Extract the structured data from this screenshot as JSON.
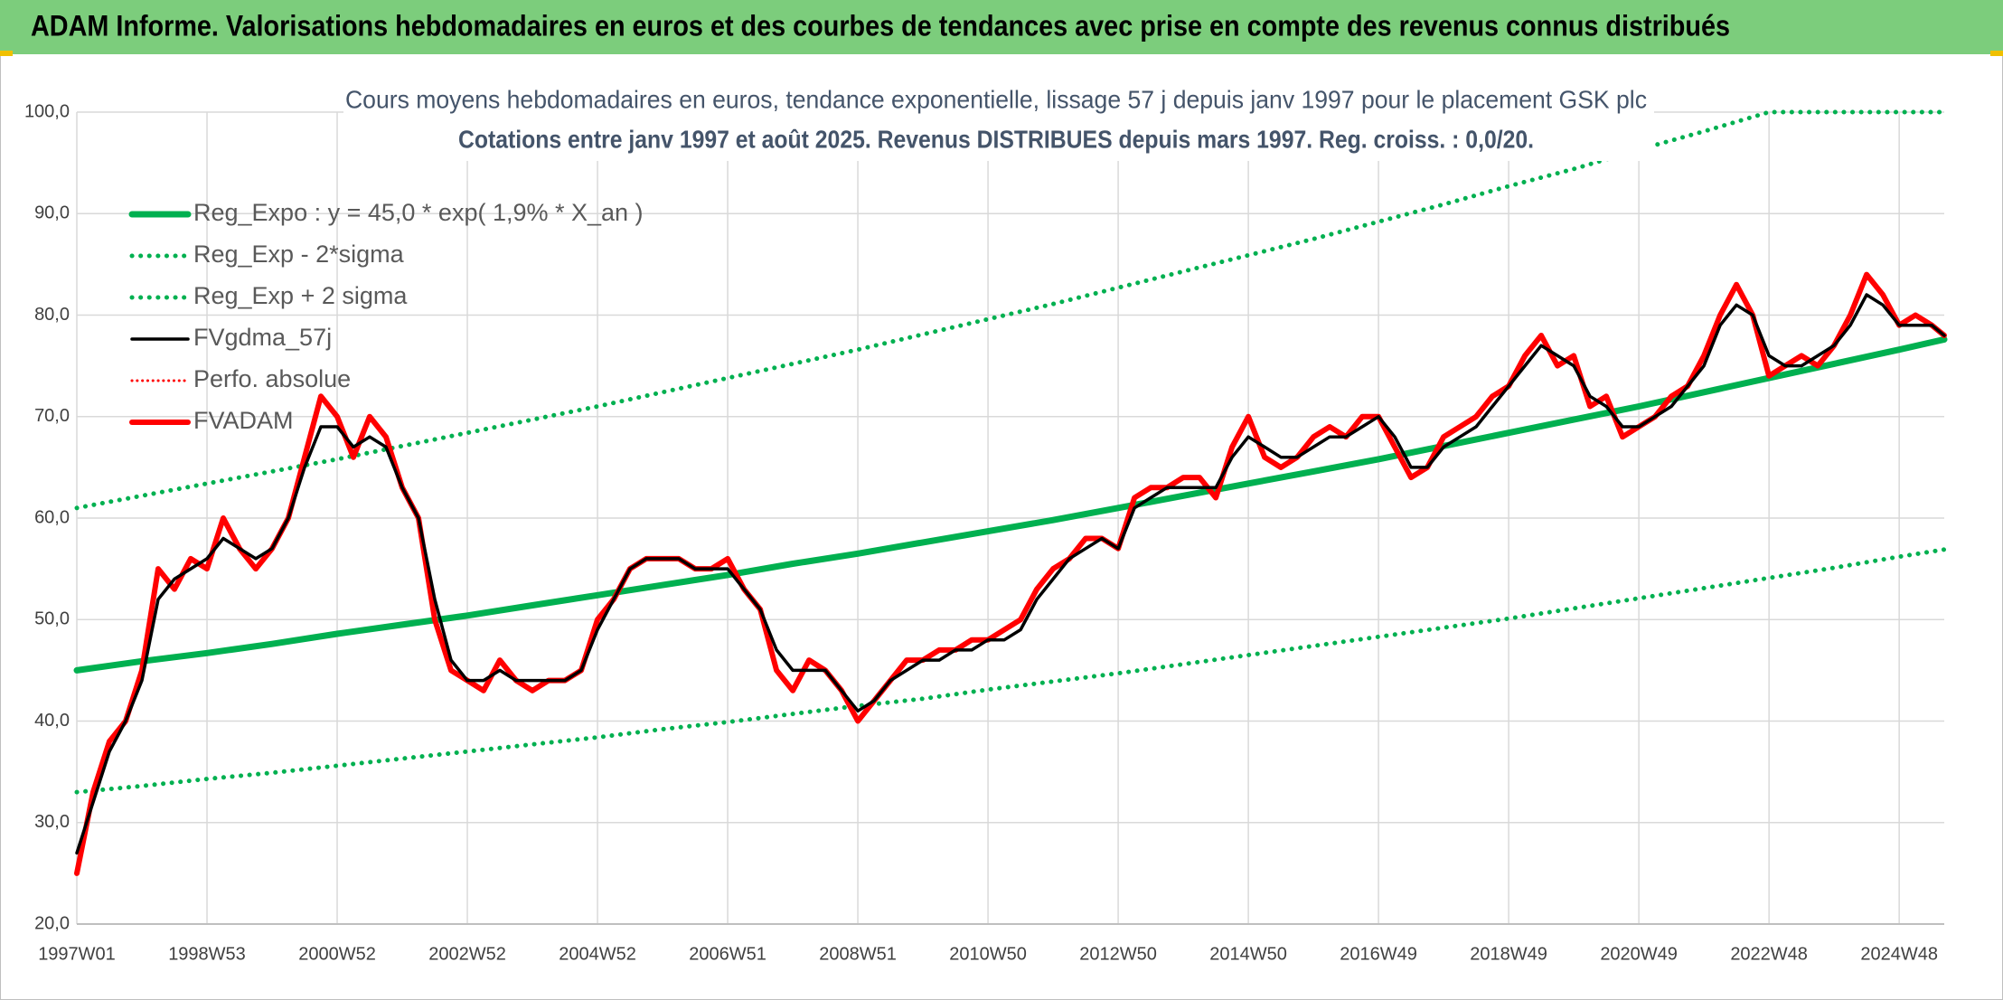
{
  "header": {
    "title": "ADAM Informe. Valorisations hebdomadaires en euros et des courbes de tendances avec prise en compte des revenus connus distribués"
  },
  "chart_data": {
    "type": "line",
    "title": "Cours moyens hebdomadaires en euros, tendance exponentielle, lissage 57 j depuis janv 1997 pour le placement GSK plc",
    "subtitle": "Cotations entre janv 1997 et août 2025. Revenus DISTRIBUES depuis mars 1997. Reg. croiss. : 0,0/20.",
    "xlim": [
      0,
      1492
    ],
    "xticks": [
      {
        "value": 0,
        "label": "1997W01"
      },
      {
        "value": 104,
        "label": "1998W53"
      },
      {
        "value": 208,
        "label": "2000W52"
      },
      {
        "value": 312,
        "label": "2002W52"
      },
      {
        "value": 416,
        "label": "2004W52"
      },
      {
        "value": 520,
        "label": "2006W51"
      },
      {
        "value": 624,
        "label": "2008W51"
      },
      {
        "value": 728,
        "label": "2010W50"
      },
      {
        "value": 832,
        "label": "2012W50"
      },
      {
        "value": 936,
        "label": "2014W50"
      },
      {
        "value": 1040,
        "label": "2016W49"
      },
      {
        "value": 1144,
        "label": "2018W49"
      },
      {
        "value": 1248,
        "label": "2020W49"
      },
      {
        "value": 1352,
        "label": "2022W48"
      },
      {
        "value": 1456,
        "label": "2024W48"
      }
    ],
    "ylim": [
      20,
      100
    ],
    "yticks": [
      {
        "value": 20,
        "label": "20,0"
      },
      {
        "value": 30,
        "label": "30,0"
      },
      {
        "value": 40,
        "label": "40,0"
      },
      {
        "value": 50,
        "label": "50,0"
      },
      {
        "value": 60,
        "label": "60,0"
      },
      {
        "value": 70,
        "label": "70,0"
      },
      {
        "value": 80,
        "label": "80,0"
      },
      {
        "value": 90,
        "label": "90,0"
      },
      {
        "value": 100,
        "label": "100,0"
      }
    ],
    "grid": true,
    "legend": "upper left",
    "series": [
      {
        "name": "Reg_Expo : y = 45,0 * exp( 1,9% *  X_an )",
        "color": "#00b050",
        "dash": false,
        "width": 7,
        "x": [
          0,
          52,
          104,
          156,
          208,
          260,
          312,
          364,
          416,
          468,
          520,
          572,
          624,
          676,
          728,
          780,
          832,
          884,
          936,
          988,
          1040,
          1092,
          1144,
          1196,
          1248,
          1300,
          1352,
          1404,
          1456,
          1492
        ],
        "values": [
          45.0,
          45.9,
          46.7,
          47.6,
          48.6,
          49.5,
          50.4,
          51.4,
          52.4,
          53.4,
          54.4,
          55.5,
          56.5,
          57.6,
          58.7,
          59.8,
          61.0,
          62.2,
          63.4,
          64.6,
          65.8,
          67.1,
          68.4,
          69.7,
          71.0,
          72.4,
          73.8,
          75.2,
          76.6,
          77.6
        ]
      },
      {
        "name": "Reg_Exp - 2*sigma",
        "color": "#00b050",
        "dash": true,
        "width": 5,
        "x": [
          0,
          52,
          104,
          156,
          208,
          260,
          312,
          364,
          416,
          468,
          520,
          572,
          624,
          676,
          728,
          780,
          832,
          884,
          936,
          988,
          1040,
          1092,
          1144,
          1196,
          1248,
          1300,
          1352,
          1404,
          1456,
          1492
        ],
        "values": [
          33.0,
          33.6,
          34.3,
          34.9,
          35.6,
          36.3,
          37.0,
          37.7,
          38.4,
          39.2,
          39.9,
          40.7,
          41.5,
          42.2,
          43.1,
          43.9,
          44.7,
          45.6,
          46.5,
          47.4,
          48.3,
          49.2,
          50.1,
          51.1,
          52.1,
          53.1,
          54.1,
          55.1,
          56.2,
          56.9
        ]
      },
      {
        "name": "Reg_Exp + 2 sigma",
        "color": "#00b050",
        "dash": true,
        "width": 5,
        "x": [
          0,
          52,
          104,
          156,
          208,
          260,
          312,
          364,
          416,
          468,
          520,
          572,
          624,
          676,
          728,
          780,
          832,
          884,
          936,
          988,
          1040,
          1092,
          1144,
          1196,
          1248,
          1300,
          1352,
          1404,
          1456,
          1492
        ],
        "values": [
          61.0,
          62.2,
          63.4,
          64.6,
          65.8,
          67.1,
          68.4,
          69.7,
          71.0,
          72.4,
          73.8,
          75.2,
          76.6,
          78.1,
          79.6,
          81.1,
          82.7,
          84.3,
          85.9,
          87.5,
          89.2,
          90.9,
          92.7,
          94.4,
          96.3,
          98.1,
          100,
          100,
          100,
          100
        ]
      },
      {
        "name": "FVgdma_57j",
        "color": "#000000",
        "dash": false,
        "width": 3.5,
        "on_top": true,
        "x": [
          0,
          13,
          26,
          39,
          52,
          65,
          78,
          91,
          104,
          117,
          130,
          143,
          156,
          169,
          182,
          195,
          208,
          221,
          234,
          247,
          260,
          273,
          286,
          299,
          312,
          325,
          338,
          351,
          364,
          377,
          390,
          403,
          416,
          429,
          442,
          455,
          468,
          481,
          494,
          507,
          520,
          533,
          546,
          559,
          572,
          585,
          598,
          611,
          624,
          637,
          650,
          663,
          676,
          689,
          702,
          715,
          728,
          741,
          754,
          767,
          780,
          793,
          806,
          819,
          832,
          845,
          858,
          871,
          884,
          897,
          910,
          923,
          936,
          949,
          962,
          975,
          988,
          1001,
          1014,
          1027,
          1040,
          1053,
          1066,
          1079,
          1092,
          1105,
          1118,
          1131,
          1144,
          1157,
          1170,
          1183,
          1196,
          1209,
          1222,
          1235,
          1248,
          1261,
          1274,
          1287,
          1300,
          1313,
          1326,
          1339,
          1352,
          1365,
          1378,
          1391,
          1404,
          1417,
          1430,
          1443,
          1456,
          1469,
          1482,
          1492
        ],
        "values": [
          27,
          32,
          37,
          40,
          44,
          52,
          54,
          55,
          56,
          58,
          57,
          56,
          57,
          60,
          65,
          69,
          69,
          67,
          68,
          67,
          63,
          60,
          52,
          46,
          44,
          44,
          45,
          44,
          44,
          44,
          44,
          45,
          49,
          52,
          55,
          56,
          56,
          56,
          55,
          55,
          55,
          53,
          51,
          47,
          45,
          45,
          45,
          43,
          41,
          42,
          44,
          45,
          46,
          46,
          47,
          47,
          48,
          48,
          49,
          52,
          54,
          56,
          57,
          58,
          57,
          61,
          62,
          63,
          63,
          63,
          63,
          66,
          68,
          67,
          66,
          66,
          67,
          68,
          68,
          69,
          70,
          68,
          65,
          65,
          67,
          68,
          69,
          71,
          73,
          75,
          77,
          76,
          75,
          72,
          71,
          69,
          69,
          70,
          71,
          73,
          75,
          79,
          81,
          80,
          76,
          75,
          75,
          76,
          77,
          79,
          82,
          81,
          79,
          79,
          79,
          78
        ]
      },
      {
        "name": "Perfo. absolue",
        "color": "#ff0000",
        "dash": true,
        "width": 3
      },
      {
        "name": "FVADAM",
        "color": "#ff0000",
        "dash": false,
        "width": 6,
        "x": [
          0,
          13,
          26,
          39,
          52,
          65,
          78,
          91,
          104,
          117,
          130,
          143,
          156,
          169,
          182,
          195,
          208,
          221,
          234,
          247,
          260,
          273,
          286,
          299,
          312,
          325,
          338,
          351,
          364,
          377,
          390,
          403,
          416,
          429,
          442,
          455,
          468,
          481,
          494,
          507,
          520,
          533,
          546,
          559,
          572,
          585,
          598,
          611,
          624,
          637,
          650,
          663,
          676,
          689,
          702,
          715,
          728,
          741,
          754,
          767,
          780,
          793,
          806,
          819,
          832,
          845,
          858,
          871,
          884,
          897,
          910,
          923,
          936,
          949,
          962,
          975,
          988,
          1001,
          1014,
          1027,
          1040,
          1053,
          1066,
          1079,
          1092,
          1105,
          1118,
          1131,
          1144,
          1157,
          1170,
          1183,
          1196,
          1209,
          1222,
          1235,
          1248,
          1261,
          1274,
          1287,
          1300,
          1313,
          1326,
          1339,
          1352,
          1365,
          1378,
          1391,
          1404,
          1417,
          1430,
          1443,
          1456,
          1469,
          1482,
          1492
        ],
        "values": [
          25,
          33,
          38,
          40,
          45,
          55,
          53,
          56,
          55,
          60,
          57,
          55,
          57,
          60,
          66,
          72,
          70,
          66,
          70,
          68,
          63,
          60,
          50,
          45,
          44,
          43,
          46,
          44,
          43,
          44,
          44,
          45,
          50,
          52,
          55,
          56,
          56,
          56,
          55,
          55,
          56,
          53,
          51,
          45,
          43,
          46,
          45,
          43,
          40,
          42,
          44,
          46,
          46,
          47,
          47,
          48,
          48,
          49,
          50,
          53,
          55,
          56,
          58,
          58,
          57,
          62,
          63,
          63,
          64,
          64,
          62,
          67,
          70,
          66,
          65,
          66,
          68,
          69,
          68,
          70,
          70,
          67,
          64,
          65,
          68,
          69,
          70,
          72,
          73,
          76,
          78,
          75,
          76,
          71,
          72,
          68,
          69,
          70,
          72,
          73,
          76,
          80,
          83,
          80,
          74,
          75,
          76,
          75,
          77,
          80,
          84,
          82,
          79,
          80,
          79,
          78
        ]
      }
    ]
  }
}
